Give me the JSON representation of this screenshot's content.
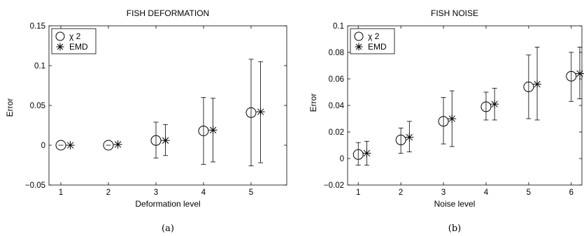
{
  "chart_data": [
    {
      "type": "scatter",
      "title": "FISH DEFORMATION",
      "xlabel": "Deformation level",
      "ylabel": "Error",
      "caption": "(a)",
      "xlim": [
        0.75,
        5.75
      ],
      "ylim": [
        -0.05,
        0.15
      ],
      "xticks": [
        1,
        2,
        3,
        4,
        5
      ],
      "xtick_labels": [
        "1",
        "2",
        "3",
        "4",
        "5"
      ],
      "yticks": [
        -0.05,
        0,
        0.05,
        0.1,
        0.15
      ],
      "ytick_labels": [
        "−0.05",
        "0",
        "0.05",
        "0.1",
        "0.15"
      ],
      "grid": false,
      "legend_position": "top-left",
      "series": [
        {
          "name": "χ 2",
          "marker": "circle",
          "x": [
            1,
            2,
            3,
            4,
            5
          ],
          "y": [
            0.0,
            0.0,
            0.006,
            0.018,
            0.041
          ],
          "err_low": [
            0.0,
            0.0,
            -0.016,
            -0.024,
            -0.026
          ],
          "err_high": [
            0.0,
            0.0,
            0.029,
            0.06,
            0.108
          ]
        },
        {
          "name": "EMD",
          "marker": "star",
          "x": [
            1.2,
            2.2,
            3.2,
            4.2,
            5.2
          ],
          "y": [
            0.0,
            0.001,
            0.006,
            0.019,
            0.042
          ],
          "err_low": [
            0.0,
            0.0,
            -0.013,
            -0.021,
            -0.022
          ],
          "err_high": [
            0.0,
            0.0,
            0.026,
            0.059,
            0.105
          ]
        }
      ]
    },
    {
      "type": "scatter",
      "title": "FISH NOISE",
      "xlabel": "Noise level",
      "ylabel": "Error",
      "caption": "(b)",
      "xlim": [
        0.75,
        6.25
      ],
      "ylim": [
        -0.02,
        0.1
      ],
      "xticks": [
        1,
        2,
        3,
        4,
        5,
        6
      ],
      "xtick_labels": [
        "1",
        "2",
        "3",
        "4",
        "5",
        "6"
      ],
      "yticks": [
        -0.02,
        0,
        0.02,
        0.04,
        0.06,
        0.08,
        0.1
      ],
      "ytick_labels": [
        "−0.02",
        "0",
        "0.02",
        "0.04",
        "0.06",
        "0.08",
        "0.1"
      ],
      "grid": false,
      "legend_position": "top-left",
      "series": [
        {
          "name": "χ 2",
          "marker": "circle",
          "x": [
            1,
            2,
            3,
            4,
            5,
            6
          ],
          "y": [
            0.003,
            0.014,
            0.028,
            0.039,
            0.054,
            0.062
          ],
          "err_low": [
            -0.005,
            0.004,
            0.011,
            0.029,
            0.03,
            0.043
          ],
          "err_high": [
            0.012,
            0.023,
            0.046,
            0.05,
            0.078,
            0.08
          ]
        },
        {
          "name": "EMD",
          "marker": "star",
          "x": [
            1.2,
            2.2,
            3.2,
            4.2,
            5.2,
            6.2
          ],
          "y": [
            0.004,
            0.016,
            0.03,
            0.041,
            0.056,
            0.064
          ],
          "err_low": [
            -0.005,
            0.005,
            0.009,
            0.029,
            0.029,
            0.045
          ],
          "err_high": [
            0.013,
            0.028,
            0.051,
            0.053,
            0.084,
            0.084
          ]
        }
      ]
    }
  ]
}
